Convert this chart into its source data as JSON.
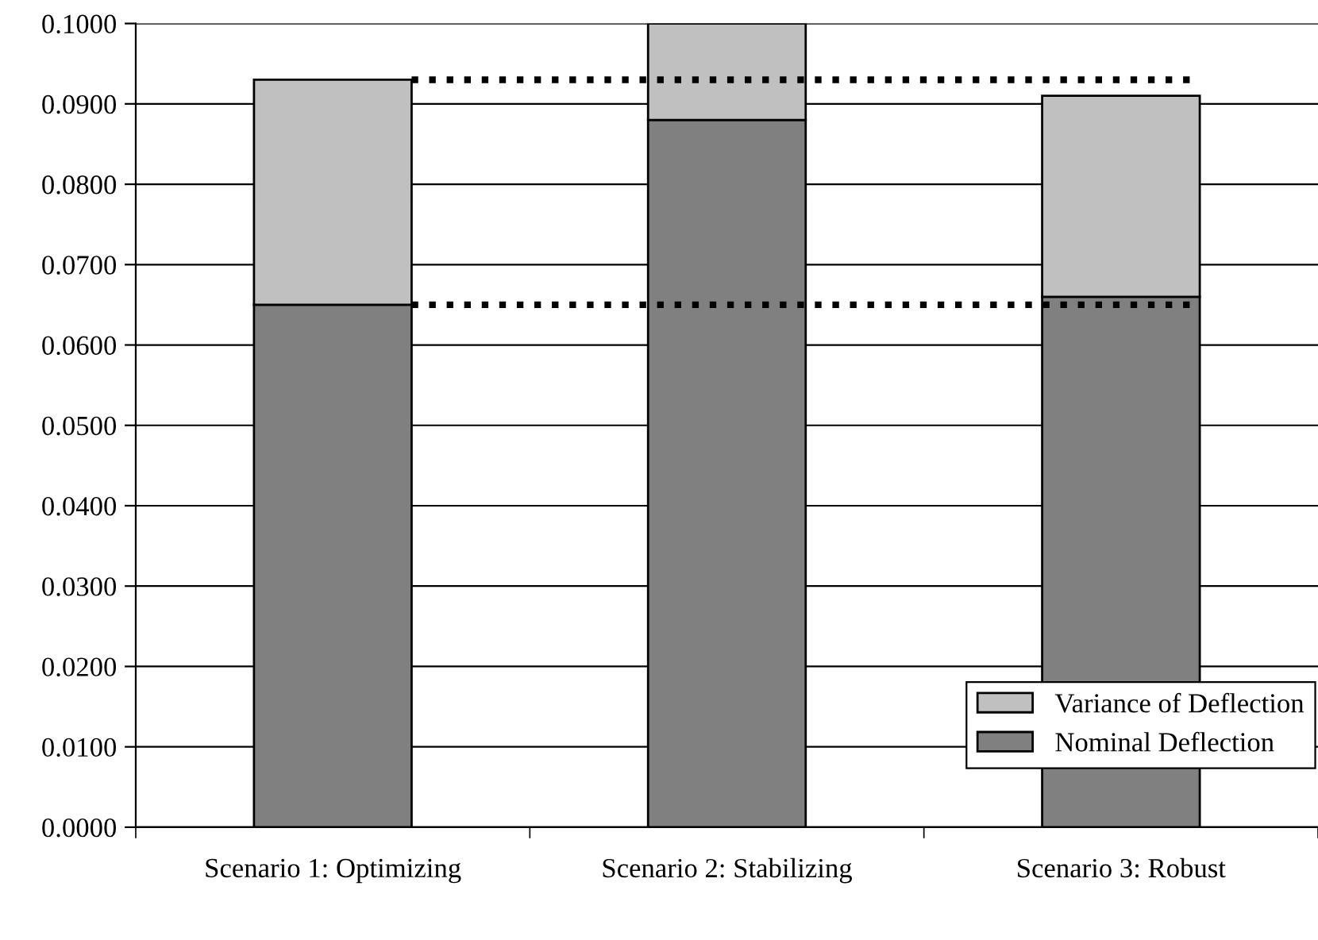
{
  "chart_data": {
    "type": "bar",
    "stacked": true,
    "categories": [
      "Scenario 1: Optimizing",
      "Scenario 2: Stabilizing",
      "Scenario 3: Robust"
    ],
    "series": [
      {
        "name": "Nominal Deflection",
        "color": "#808080",
        "values": [
          0.065,
          0.088,
          0.066
        ]
      },
      {
        "name": "Variance of Deflection",
        "color": "#c0c0c0",
        "values": [
          0.028,
          0.012,
          0.025
        ]
      }
    ],
    "ylim": [
      0,
      0.1
    ],
    "yticks": [
      {
        "value": 0,
        "label": "0.0000"
      },
      {
        "value": 0.01,
        "label": "0.0100"
      },
      {
        "value": 0.02,
        "label": "0.0200"
      },
      {
        "value": 0.03,
        "label": "0.0300"
      },
      {
        "value": 0.04,
        "label": "0.0400"
      },
      {
        "value": 0.05,
        "label": "0.0500"
      },
      {
        "value": 0.06,
        "label": "0.0600"
      },
      {
        "value": 0.07,
        "label": "0.0700"
      },
      {
        "value": 0.08,
        "label": "0.0800"
      },
      {
        "value": 0.09,
        "label": "0.0900"
      },
      {
        "value": 0.1,
        "label": "0.1000"
      }
    ],
    "ref_lines": [
      {
        "axis": "y",
        "value": 0.093,
        "color": "#000000",
        "line_style": "dotted"
      },
      {
        "axis": "y",
        "value": 0.065,
        "color": "#000000",
        "line_style": "dotted"
      }
    ],
    "grid": "y",
    "legend": "bottom right"
  }
}
